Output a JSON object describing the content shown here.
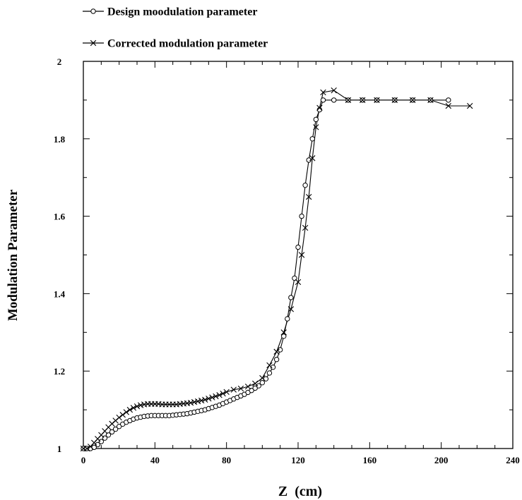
{
  "chart_data": {
    "type": "line",
    "title": "",
    "xlabel": "Z  (cm)",
    "ylabel": "Modulation Parameter",
    "xlim": [
      0,
      240
    ],
    "ylim": [
      1,
      2
    ],
    "x_ticks": [
      "0",
      "40",
      "80",
      "120",
      "160",
      "200",
      "240"
    ],
    "y_ticks": [
      "1",
      "1.2",
      "1.4",
      "1.6",
      "1.8",
      "2"
    ],
    "grid": false,
    "legend_position": "top-left",
    "series": [
      {
        "name": "Design moodulation parameter",
        "marker": "circle",
        "color": "#000000",
        "x": [
          0,
          2,
          4,
          6,
          8,
          10,
          12,
          14,
          16,
          18,
          20,
          22,
          24,
          26,
          28,
          30,
          32,
          34,
          36,
          38,
          40,
          42,
          44,
          46,
          48,
          50,
          52,
          54,
          56,
          58,
          60,
          62,
          64,
          66,
          68,
          70,
          72,
          74,
          76,
          78,
          80,
          82,
          84,
          86,
          88,
          90,
          92,
          94,
          96,
          98,
          100,
          102,
          104,
          106,
          108,
          110,
          112,
          114,
          116,
          118,
          120,
          122,
          124,
          126,
          128,
          130,
          132,
          134,
          140,
          148,
          156,
          164,
          174,
          184,
          194,
          204
        ],
        "y": [
          1.0,
          1.0,
          1.0,
          1.003,
          1.01,
          1.018,
          1.027,
          1.035,
          1.043,
          1.05,
          1.057,
          1.063,
          1.068,
          1.072,
          1.076,
          1.079,
          1.081,
          1.083,
          1.084,
          1.085,
          1.085,
          1.085,
          1.085,
          1.085,
          1.085,
          1.086,
          1.087,
          1.088,
          1.089,
          1.09,
          1.092,
          1.094,
          1.096,
          1.098,
          1.1,
          1.103,
          1.106,
          1.109,
          1.112,
          1.116,
          1.12,
          1.124,
          1.128,
          1.132,
          1.136,
          1.14,
          1.145,
          1.15,
          1.156,
          1.162,
          1.17,
          1.18,
          1.195,
          1.21,
          1.23,
          1.255,
          1.29,
          1.335,
          1.39,
          1.44,
          1.52,
          1.6,
          1.68,
          1.745,
          1.8,
          1.85,
          1.875,
          1.9,
          1.9,
          1.9,
          1.9,
          1.9,
          1.9,
          1.9,
          1.9,
          1.9
        ]
      },
      {
        "name": "Corrected modulation parameter",
        "marker": "x",
        "color": "#000000",
        "x": [
          0,
          2,
          4,
          6,
          8,
          10,
          12,
          14,
          16,
          18,
          20,
          22,
          24,
          26,
          28,
          30,
          32,
          34,
          36,
          38,
          40,
          42,
          44,
          46,
          48,
          50,
          52,
          54,
          56,
          58,
          60,
          62,
          64,
          66,
          68,
          70,
          72,
          74,
          76,
          78,
          80,
          84,
          88,
          92,
          96,
          100,
          104,
          108,
          112,
          116,
          120,
          122,
          124,
          126,
          128,
          130,
          132,
          134,
          140,
          148,
          156,
          164,
          174,
          184,
          194,
          204,
          216
        ],
        "y": [
          1.0,
          1.0,
          1.005,
          1.015,
          1.025,
          1.035,
          1.045,
          1.055,
          1.064,
          1.072,
          1.08,
          1.087,
          1.094,
          1.1,
          1.105,
          1.109,
          1.112,
          1.114,
          1.115,
          1.115,
          1.115,
          1.115,
          1.114,
          1.114,
          1.114,
          1.114,
          1.114,
          1.115,
          1.116,
          1.117,
          1.118,
          1.12,
          1.122,
          1.124,
          1.126,
          1.129,
          1.132,
          1.135,
          1.138,
          1.142,
          1.146,
          1.152,
          1.155,
          1.16,
          1.168,
          1.182,
          1.215,
          1.25,
          1.3,
          1.36,
          1.43,
          1.5,
          1.57,
          1.65,
          1.75,
          1.83,
          1.88,
          1.92,
          1.925,
          1.9,
          1.9,
          1.9,
          1.9,
          1.9,
          1.9,
          1.885,
          1.885
        ]
      }
    ]
  }
}
